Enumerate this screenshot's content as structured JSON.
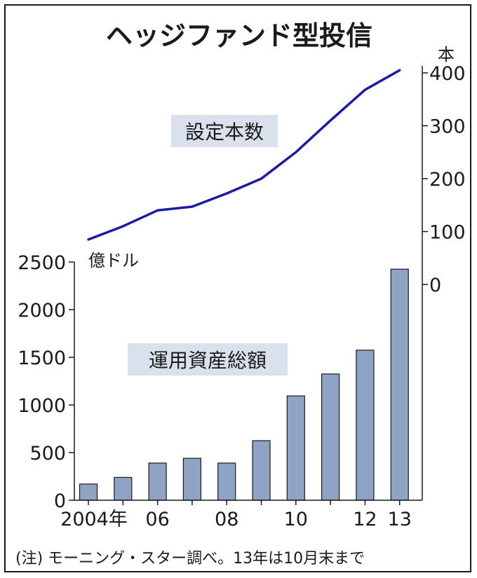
{
  "title": "ヘッジファンド型投信",
  "note": "(注) モーニング・スター調べ。13年は10月末まで",
  "colors": {
    "line": "#1a1aa8",
    "bar": "#8fa3c4",
    "bar_stroke": "#1a1a1a",
    "label_box": "#d9e1ec",
    "axis": "#1a1a1a"
  },
  "chart_data": [
    {
      "type": "line",
      "series_label": "設定本数",
      "unit": "本",
      "x": [
        "2004",
        "2005",
        "2006",
        "2007",
        "2008",
        "2009",
        "2010",
        "2011",
        "2012",
        "2013"
      ],
      "values": [
        85,
        110,
        140,
        147,
        172,
        200,
        250,
        310,
        368,
        405
      ],
      "ylim": [
        0,
        400
      ],
      "yticks": [
        0,
        100,
        200,
        300,
        400
      ],
      "ytick_labels": [
        "0",
        "100",
        "200",
        "300",
        "400"
      ],
      "axis_side": "right"
    },
    {
      "type": "bar",
      "series_label": "運用資産総額",
      "unit": "億ドル",
      "categories": [
        "2004",
        "2005",
        "2006",
        "2007",
        "2008",
        "2009",
        "2010",
        "2011",
        "2012",
        "2013"
      ],
      "values": [
        170,
        240,
        390,
        440,
        390,
        625,
        1095,
        1325,
        1575,
        2425
      ],
      "ylim": [
        0,
        2500
      ],
      "yticks": [
        0,
        500,
        1000,
        1500,
        2000,
        2500
      ],
      "ytick_labels": [
        "0",
        "500",
        "1000",
        "1500",
        "2000",
        "2500"
      ],
      "axis_side": "left",
      "xtick_labels": [
        "2004年",
        "",
        "06",
        "",
        "08",
        "",
        "10",
        "",
        "12",
        "13"
      ]
    }
  ]
}
